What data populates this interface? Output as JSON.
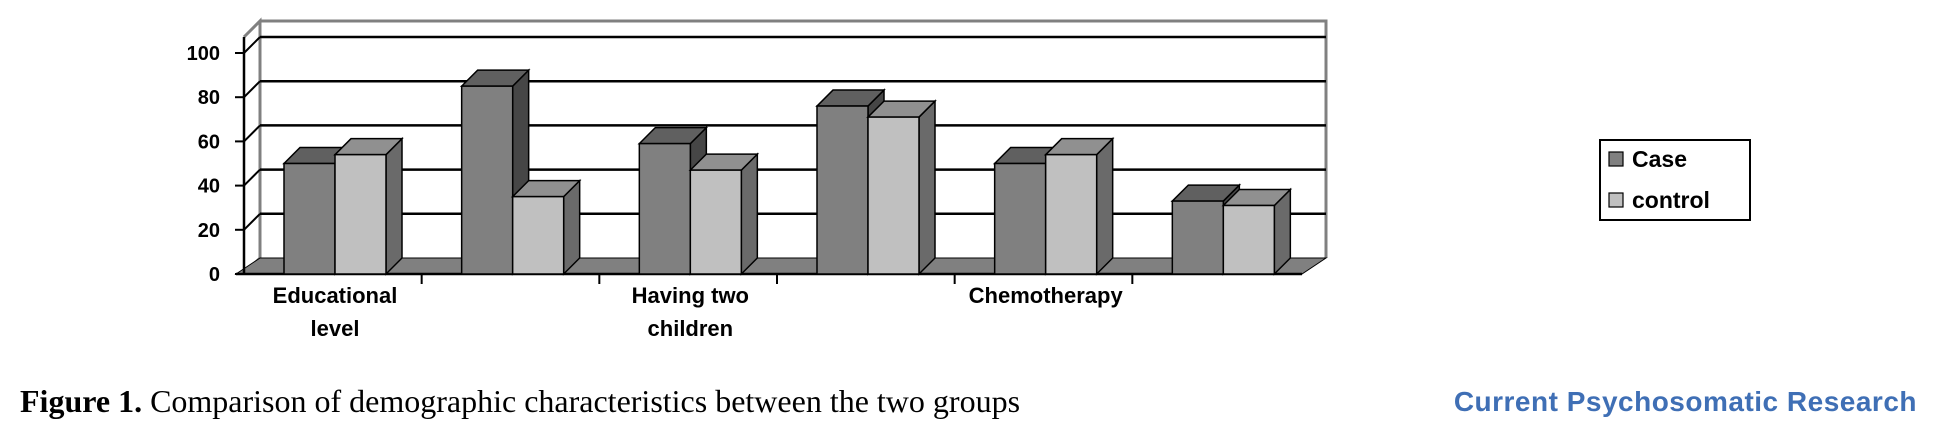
{
  "chart_data": {
    "type": "bar",
    "categories": [
      "Educational level",
      "",
      "Having two children",
      "",
      "Chemotherapy",
      ""
    ],
    "series": [
      {
        "name": "Case",
        "values": [
          50,
          85,
          59,
          76,
          50,
          33
        ],
        "color": "#808080"
      },
      {
        "name": "control",
        "values": [
          54,
          35,
          47,
          71,
          54,
          31
        ],
        "color": "#c0c0c0"
      }
    ],
    "yticks": [
      "0",
      "20",
      "40",
      "60",
      "80",
      "100"
    ],
    "ylim": [
      0,
      100
    ],
    "grid": true,
    "legend_position": "right"
  },
  "caption": {
    "label": "Figure 1.",
    "text": " Comparison of demographic characteristics between the two groups"
  },
  "brand": "Current Psychosomatic Research"
}
